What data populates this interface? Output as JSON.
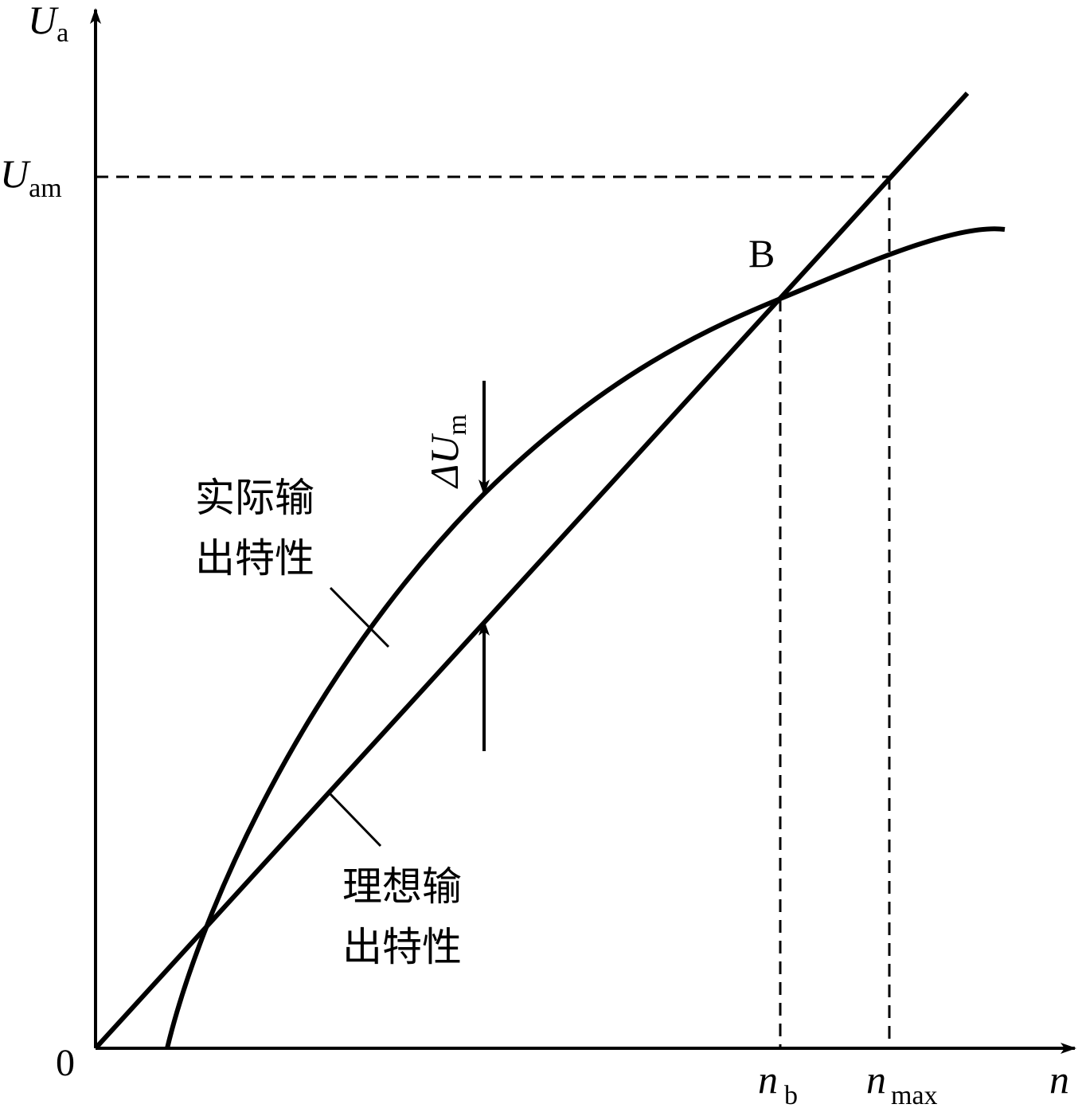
{
  "axes": {
    "y_label": {
      "symbol": "U",
      "subscript": "a"
    },
    "x_label": "n",
    "origin": "0"
  },
  "marks": {
    "u_am": {
      "symbol": "U",
      "subscript": "am"
    },
    "n_b": {
      "symbol": "n",
      "subscript": "b"
    },
    "n_max": {
      "symbol": "n",
      "subscript": "max"
    },
    "point_b": "B",
    "delta_u": {
      "symbol": "ΔU",
      "subscript": "m"
    }
  },
  "curves": {
    "actual": [
      "实际输",
      "出特性"
    ],
    "ideal": [
      "理想输",
      "出特性"
    ]
  }
}
